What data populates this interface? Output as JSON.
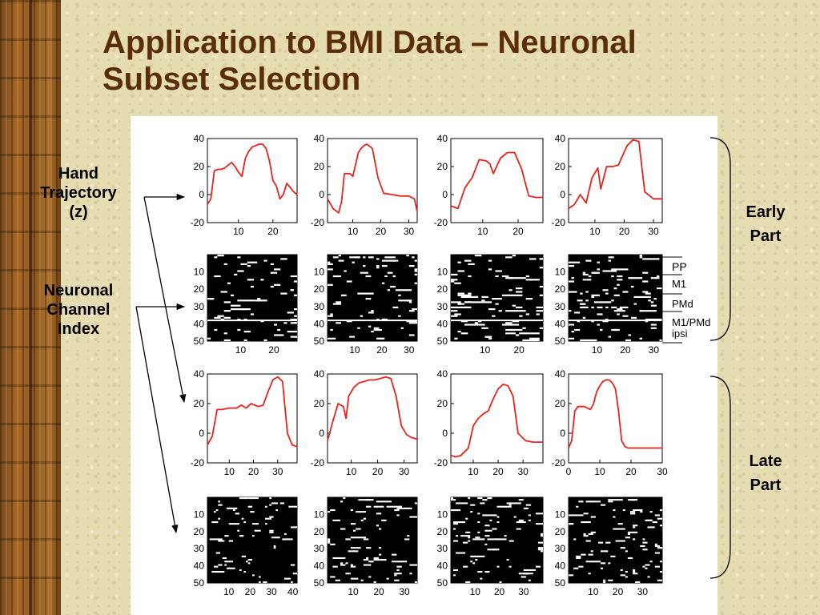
{
  "slide": {
    "title_line1": "Application to BMI Data – Neuronal",
    "title_line2": "Subset Selection",
    "hand_label": [
      "Hand",
      "Trajectory",
      "(z)"
    ],
    "channel_label": [
      "Neuronal",
      "Channel",
      "Index"
    ],
    "early_label": [
      "Early",
      "Part"
    ],
    "late_label": [
      "Late",
      "Part"
    ],
    "region_labels": [
      "PP",
      "M1",
      "PMd",
      "M1/PMd",
      "ipsi"
    ]
  },
  "chart_data": [
    {
      "type": "line",
      "panel": "early-1",
      "ylim": [
        -20,
        40
      ],
      "xlim": [
        1,
        27
      ],
      "yticks": [
        40,
        20,
        0,
        -20
      ],
      "xticks": [
        10,
        20
      ],
      "x": [
        1,
        2,
        3,
        4,
        5,
        6,
        7,
        8,
        9,
        10,
        11,
        12,
        13,
        14,
        15,
        16,
        17,
        18,
        19,
        20,
        21,
        22,
        23,
        24,
        25,
        26,
        27
      ],
      "values": [
        -7,
        -3,
        17,
        18,
        18,
        19,
        21,
        23,
        20,
        16,
        13,
        26,
        31,
        34,
        35,
        36,
        36,
        33,
        24,
        10,
        6,
        -3,
        0,
        8,
        5,
        2,
        0
      ]
    },
    {
      "type": "line",
      "panel": "early-2",
      "ylim": [
        -20,
        40
      ],
      "xlim": [
        1,
        33
      ],
      "yticks": [
        40,
        20,
        0,
        -20
      ],
      "xticks": [
        10,
        20,
        30
      ],
      "x": [
        1,
        3,
        5,
        6,
        7,
        9,
        10,
        12,
        13,
        14,
        15,
        17,
        19,
        21,
        24,
        27,
        30,
        32,
        33
      ],
      "values": [
        -3,
        -10,
        -13,
        -5,
        15,
        15,
        13,
        30,
        33,
        35,
        36,
        33,
        12,
        1,
        0,
        -1,
        -1,
        -3,
        -12
      ]
    },
    {
      "type": "line",
      "panel": "early-3",
      "ylim": [
        -20,
        40
      ],
      "xlim": [
        1,
        27
      ],
      "yticks": [
        40,
        20,
        0,
        -20
      ],
      "xticks": [
        10,
        20
      ],
      "x": [
        1,
        3,
        5,
        7,
        9,
        11,
        12,
        13,
        15,
        17,
        19,
        21,
        23,
        25,
        27
      ],
      "values": [
        -8,
        -10,
        5,
        12,
        25,
        24,
        22,
        15,
        26,
        30,
        30,
        18,
        -1,
        -2,
        -2
      ]
    },
    {
      "type": "line",
      "panel": "early-4",
      "ylim": [
        -20,
        40
      ],
      "xlim": [
        1,
        33
      ],
      "yticks": [
        40,
        20,
        0,
        -20
      ],
      "xticks": [
        10,
        20,
        30
      ],
      "x": [
        1,
        3,
        5,
        7,
        9,
        11,
        12,
        14,
        16,
        18,
        21,
        23,
        25,
        27,
        30,
        33
      ],
      "values": [
        -10,
        -7,
        0,
        -6,
        12,
        19,
        4,
        20,
        20,
        21,
        35,
        39,
        38,
        2,
        -3,
        -3
      ]
    },
    {
      "type": "line",
      "panel": "late-1",
      "ylim": [
        -20,
        40
      ],
      "xlim": [
        1,
        38
      ],
      "yticks": [
        40,
        20,
        0,
        -20
      ],
      "xticks": [
        10,
        20,
        30
      ],
      "x": [
        1,
        3,
        5,
        7,
        10,
        13,
        15,
        17,
        19,
        22,
        24,
        26,
        28,
        30,
        32,
        34,
        36,
        38
      ],
      "values": [
        -8,
        -2,
        16,
        16,
        17,
        17,
        19,
        17,
        20,
        18,
        19,
        28,
        36,
        38,
        35,
        0,
        -8,
        -9
      ]
    },
    {
      "type": "line",
      "panel": "late-2",
      "ylim": [
        -20,
        40
      ],
      "xlim": [
        1,
        35
      ],
      "yticks": [
        40,
        20,
        0,
        -20
      ],
      "xticks": [
        10,
        20,
        30
      ],
      "x": [
        1,
        3,
        5,
        7,
        8,
        9,
        11,
        13,
        15,
        17,
        19,
        21,
        23,
        25,
        27,
        29,
        31,
        33,
        35
      ],
      "values": [
        -5,
        8,
        20,
        18,
        10,
        25,
        31,
        34,
        35,
        36,
        36,
        37,
        38,
        37,
        25,
        5,
        -1,
        -3,
        -4
      ]
    },
    {
      "type": "line",
      "panel": "late-3",
      "ylim": [
        -20,
        40
      ],
      "xlim": [
        1,
        38
      ],
      "yticks": [
        40,
        20,
        0,
        -20
      ],
      "xticks": [
        10,
        20,
        30
      ],
      "x": [
        1,
        3,
        5,
        8,
        10,
        12,
        14,
        16,
        18,
        20,
        22,
        24,
        26,
        28,
        31,
        34,
        38
      ],
      "values": [
        -15,
        -16,
        -15,
        -10,
        5,
        10,
        13,
        15,
        23,
        30,
        33,
        32,
        25,
        0,
        -5,
        -6,
        -6
      ]
    },
    {
      "type": "line",
      "panel": "late-4",
      "ylim": [
        -20,
        40
      ],
      "xlim": [
        0,
        30
      ],
      "yticks": [
        40,
        20,
        0,
        -20
      ],
      "xticks": [
        0,
        10,
        20,
        30
      ],
      "x": [
        0,
        1,
        2,
        3,
        4,
        5,
        6,
        7,
        8,
        9,
        10,
        11,
        12,
        13,
        14,
        15,
        16,
        17,
        18,
        19,
        20,
        21,
        22,
        23,
        24,
        25,
        26,
        27,
        28,
        29,
        30
      ],
      "values": [
        -10,
        -5,
        15,
        18,
        18,
        18,
        17,
        16,
        20,
        28,
        32,
        35,
        36,
        36,
        34,
        30,
        15,
        -5,
        -9,
        -10,
        -10,
        -10,
        -10,
        -10,
        -10,
        -10,
        -10,
        -10,
        -10,
        -10,
        -10
      ]
    },
    {
      "type": "heatmap",
      "panel": "chan-early-1",
      "yticks": [
        10,
        20,
        30,
        40,
        50
      ],
      "xticks": [
        10,
        20
      ],
      "ncols": 27
    },
    {
      "type": "heatmap",
      "panel": "chan-early-2",
      "yticks": [
        10,
        20,
        30,
        40,
        50
      ],
      "xticks": [
        10,
        20,
        30
      ],
      "ncols": 33
    },
    {
      "type": "heatmap",
      "panel": "chan-early-3",
      "yticks": [
        10,
        20,
        30,
        40,
        50
      ],
      "xticks": [
        10,
        20
      ],
      "ncols": 27
    },
    {
      "type": "heatmap",
      "panel": "chan-early-4",
      "yticks": [
        10,
        20,
        30,
        40,
        50
      ],
      "xticks": [
        10,
        20,
        30
      ],
      "ncols": 33
    },
    {
      "type": "heatmap",
      "panel": "chan-late-1",
      "yticks": [
        10,
        20,
        30,
        40,
        50
      ],
      "xticks": [
        10,
        20,
        30,
        40
      ],
      "ncols": 42
    },
    {
      "type": "heatmap",
      "panel": "chan-late-2",
      "yticks": [
        10,
        20,
        30,
        40,
        50
      ],
      "xticks": [
        10,
        20,
        30
      ],
      "ncols": 35
    },
    {
      "type": "heatmap",
      "panel": "chan-late-3",
      "yticks": [
        10,
        20,
        30,
        40,
        50
      ],
      "xticks": [
        10,
        20,
        30
      ],
      "ncols": 38
    },
    {
      "type": "heatmap",
      "panel": "chan-late-4",
      "yticks": [
        10,
        20,
        30,
        40,
        50
      ],
      "xticks": [
        10,
        20,
        30
      ],
      "ncols": 38
    }
  ]
}
